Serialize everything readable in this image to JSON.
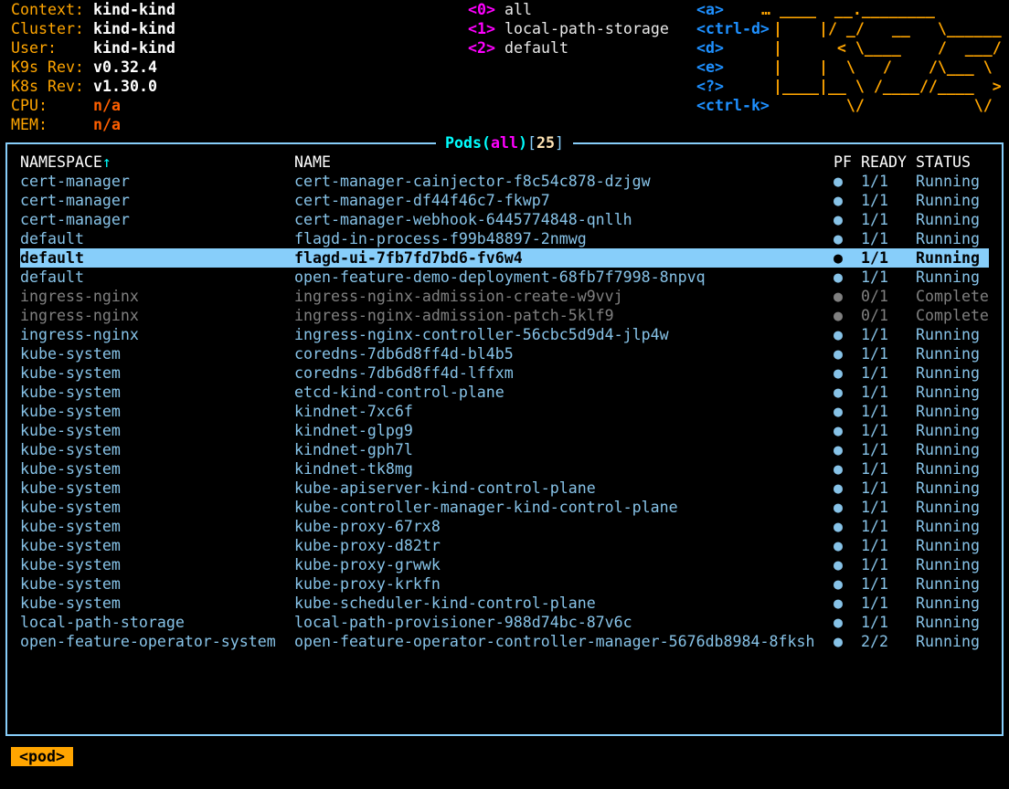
{
  "info": [
    {
      "label": "Context:",
      "value": "kind-kind",
      "kind": "val"
    },
    {
      "label": "Cluster:",
      "value": "kind-kind",
      "kind": "val"
    },
    {
      "label": "User:",
      "value": "kind-kind",
      "kind": "val"
    },
    {
      "label": "K9s Rev:",
      "value": "v0.32.4",
      "kind": "val"
    },
    {
      "label": "K8s Rev:",
      "value": "v1.30.0",
      "kind": "val"
    },
    {
      "label": "CPU:",
      "value": "n/a",
      "kind": "warn"
    },
    {
      "label": "MEM:",
      "value": "n/a",
      "kind": "warn"
    }
  ],
  "namespaces": [
    {
      "key": "<0>",
      "label": "all"
    },
    {
      "key": "<1>",
      "label": "local-path-storage"
    },
    {
      "key": "<2>",
      "label": "default"
    }
  ],
  "hotkeys": [
    "<a>",
    "<ctrl-d>",
    "<d>",
    "<e>",
    "<?>",
    "<ctrl-k>"
  ],
  "logo": [
    "… ____  __.________       ",
    "|    |/ _/   __   \\______",
    "|      < \\____    /  ___/",
    "|    |  \\   /    /\\___ \\ ",
    "|____|__ \\ /____//____  >",
    "        \\/            \\/ "
  ],
  "title": {
    "resource": "Pods",
    "open": "(",
    "ns": "all",
    "close": ")",
    "count_open": "[",
    "count": "25",
    "count_close": "]"
  },
  "columns": {
    "namespace": "NAMESPACE",
    "sort_arrow": "↑",
    "name": "NAME",
    "pf": "PF",
    "ready": "READY",
    "status": "STATUS"
  },
  "pods": [
    {
      "namespace": "cert-manager",
      "name": "cert-manager-cainjector-f8c54c878-dzjgw",
      "pf": "●",
      "ready": "1/1",
      "status": "Running"
    },
    {
      "namespace": "cert-manager",
      "name": "cert-manager-df44f46c7-fkwp7",
      "pf": "●",
      "ready": "1/1",
      "status": "Running"
    },
    {
      "namespace": "cert-manager",
      "name": "cert-manager-webhook-6445774848-qnllh",
      "pf": "●",
      "ready": "1/1",
      "status": "Running"
    },
    {
      "namespace": "default",
      "name": "flagd-in-process-f99b48897-2nmwg",
      "pf": "●",
      "ready": "1/1",
      "status": "Running"
    },
    {
      "namespace": "default",
      "name": "flagd-ui-7fb7fd7bd6-fv6w4",
      "pf": "●",
      "ready": "1/1",
      "status": "Running",
      "selected": true
    },
    {
      "namespace": "default",
      "name": "open-feature-demo-deployment-68fb7f7998-8npvq",
      "pf": "●",
      "ready": "1/1",
      "status": "Running"
    },
    {
      "namespace": "ingress-nginx",
      "name": "ingress-nginx-admission-create-w9vvj",
      "pf": "●",
      "ready": "0/1",
      "status": "Completed",
      "dim": true
    },
    {
      "namespace": "ingress-nginx",
      "name": "ingress-nginx-admission-patch-5klf9",
      "pf": "●",
      "ready": "0/1",
      "status": "Completed",
      "dim": true
    },
    {
      "namespace": "ingress-nginx",
      "name": "ingress-nginx-controller-56cbc5d9d4-jlp4w",
      "pf": "●",
      "ready": "1/1",
      "status": "Running"
    },
    {
      "namespace": "kube-system",
      "name": "coredns-7db6d8ff4d-bl4b5",
      "pf": "●",
      "ready": "1/1",
      "status": "Running"
    },
    {
      "namespace": "kube-system",
      "name": "coredns-7db6d8ff4d-lffxm",
      "pf": "●",
      "ready": "1/1",
      "status": "Running"
    },
    {
      "namespace": "kube-system",
      "name": "etcd-kind-control-plane",
      "pf": "●",
      "ready": "1/1",
      "status": "Running"
    },
    {
      "namespace": "kube-system",
      "name": "kindnet-7xc6f",
      "pf": "●",
      "ready": "1/1",
      "status": "Running"
    },
    {
      "namespace": "kube-system",
      "name": "kindnet-glpg9",
      "pf": "●",
      "ready": "1/1",
      "status": "Running"
    },
    {
      "namespace": "kube-system",
      "name": "kindnet-gph7l",
      "pf": "●",
      "ready": "1/1",
      "status": "Running"
    },
    {
      "namespace": "kube-system",
      "name": "kindnet-tk8mg",
      "pf": "●",
      "ready": "1/1",
      "status": "Running"
    },
    {
      "namespace": "kube-system",
      "name": "kube-apiserver-kind-control-plane",
      "pf": "●",
      "ready": "1/1",
      "status": "Running"
    },
    {
      "namespace": "kube-system",
      "name": "kube-controller-manager-kind-control-plane",
      "pf": "●",
      "ready": "1/1",
      "status": "Running"
    },
    {
      "namespace": "kube-system",
      "name": "kube-proxy-67rx8",
      "pf": "●",
      "ready": "1/1",
      "status": "Running"
    },
    {
      "namespace": "kube-system",
      "name": "kube-proxy-d82tr",
      "pf": "●",
      "ready": "1/1",
      "status": "Running"
    },
    {
      "namespace": "kube-system",
      "name": "kube-proxy-grwwk",
      "pf": "●",
      "ready": "1/1",
      "status": "Running"
    },
    {
      "namespace": "kube-system",
      "name": "kube-proxy-krkfn",
      "pf": "●",
      "ready": "1/1",
      "status": "Running"
    },
    {
      "namespace": "kube-system",
      "name": "kube-scheduler-kind-control-plane",
      "pf": "●",
      "ready": "1/1",
      "status": "Running"
    },
    {
      "namespace": "local-path-storage",
      "name": "local-path-provisioner-988d74bc-87v6c",
      "pf": "●",
      "ready": "1/1",
      "status": "Running"
    },
    {
      "namespace": "open-feature-operator-system",
      "name": "open-feature-operator-controller-manager-5676db8984-8fksh",
      "pf": "●",
      "ready": "2/2",
      "status": "Running"
    }
  ],
  "breadcrumb": "<pod>",
  "colors": {
    "label": "#ffa500",
    "row": "#87c3e8",
    "selected_bg": "#87cefa",
    "dim": "#808080",
    "border": "#87cefa",
    "ns_key": "#ff00ff",
    "hotkey": "#1e90ff",
    "warn": "#ff5f00"
  }
}
